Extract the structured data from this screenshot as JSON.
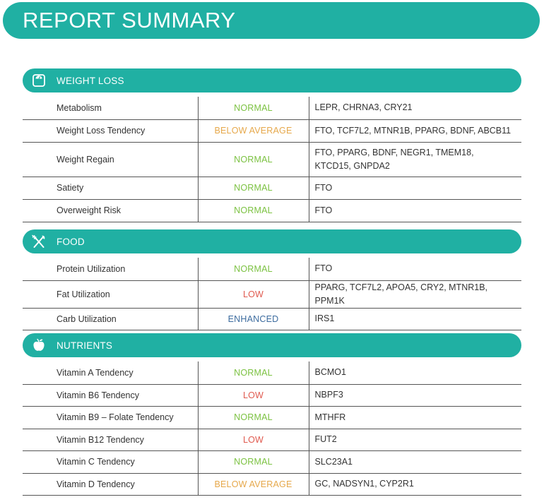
{
  "title": "REPORT SUMMARY",
  "colors": {
    "accent": "#20b0a3",
    "normal": "#7cc242",
    "below_average": "#e6a84b",
    "low": "#e05a4f",
    "enhanced": "#3d6c9f"
  },
  "sections": [
    {
      "title": "WEIGHT LOSS",
      "icon": "scale-icon",
      "rows": [
        {
          "trait": "Metabolism",
          "status": "NORMAL",
          "genes": "LEPR, CHRNA3, CRY21"
        },
        {
          "trait": "Weight Loss Tendency",
          "status": "BELOW AVERAGE",
          "genes": "FTO, TCF7L2, MTNR1B, PPARG, BDNF, ABCB11"
        },
        {
          "trait": "Weight Regain",
          "status": "NORMAL",
          "genes": "FTO, PPARG, BDNF, NEGR1, TMEM18, KTCD15, GNPDA2"
        },
        {
          "trait": "Satiety",
          "status": "NORMAL",
          "genes": "FTO"
        },
        {
          "trait": "Overweight Risk",
          "status": "NORMAL",
          "genes": "FTO"
        }
      ]
    },
    {
      "title": "FOOD",
      "icon": "fork-knife-icon",
      "rows": [
        {
          "trait": "Protein Utilization",
          "status": "NORMAL",
          "genes": "FTO"
        },
        {
          "trait": "Fat Utilization",
          "status": "LOW",
          "genes": "PPARG, TCF7L2, APOA5, CRY2, MTNR1B, PPM1K"
        },
        {
          "trait": "Carb Utilization",
          "status": "ENHANCED",
          "genes": "IRS1"
        }
      ]
    },
    {
      "title": "NUTRIENTS",
      "icon": "apple-icon",
      "rows": [
        {
          "trait": "Vitamin A Tendency",
          "status": "NORMAL",
          "genes": "BCMO1"
        },
        {
          "trait": "Vitamin B6 Tendency",
          "status": "LOW",
          "genes": "NBPF3"
        },
        {
          "trait": "Vitamin B9 – Folate Tendency",
          "status": "NORMAL",
          "genes": "MTHFR"
        },
        {
          "trait": "Vitamin B12 Tendency",
          "status": "LOW",
          "genes": "FUT2"
        },
        {
          "trait": "Vitamin C Tendency",
          "status": "NORMAL",
          "genes": "SLC23A1"
        },
        {
          "trait": "Vitamin D Tendency",
          "status": "BELOW AVERAGE",
          "genes": "GC, NADSYN1, CYP2R1"
        }
      ]
    }
  ]
}
